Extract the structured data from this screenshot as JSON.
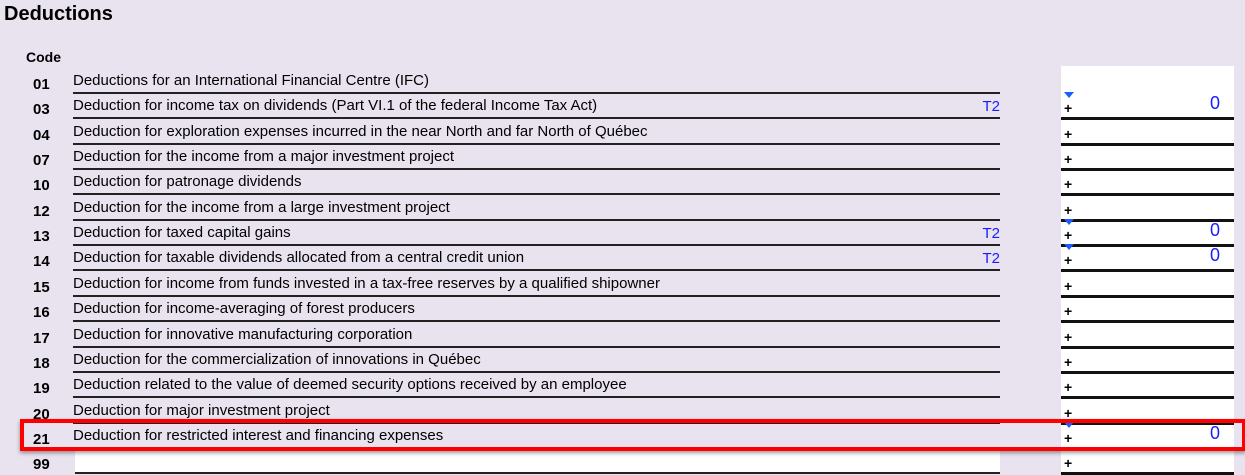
{
  "title": "Deductions",
  "code_header": "Code",
  "rows": [
    {
      "code": "01",
      "desc": "Deductions for an International Financial Centre (IFC)",
      "ref": "",
      "value": "",
      "plus": "",
      "has_amount_line": false
    },
    {
      "code": "03",
      "desc": "Deduction for income tax on dividends (Part VI.1 of the federal Income Tax Act)",
      "ref": "T2",
      "value": "0",
      "plus": "+"
    },
    {
      "code": "04",
      "desc": "Deduction for exploration expenses incurred in the near North and far North of Québec",
      "ref": "",
      "value": "",
      "plus": "+"
    },
    {
      "code": "07",
      "desc": "Deduction for the income from a major investment project",
      "ref": "",
      "value": "",
      "plus": "+"
    },
    {
      "code": "10",
      "desc": "Deduction for patronage dividends",
      "ref": "",
      "value": "",
      "plus": "+"
    },
    {
      "code": "12",
      "desc": "Deduction for the income from a large investment project",
      "ref": "",
      "value": "",
      "plus": "+"
    },
    {
      "code": "13",
      "desc": "Deduction for taxed capital gains",
      "ref": "T2",
      "value": "0",
      "plus": "+"
    },
    {
      "code": "14",
      "desc": "Deduction for taxable dividends allocated from a central credit union",
      "ref": "T2",
      "value": "0",
      "plus": "+"
    },
    {
      "code": "15",
      "desc": "Deduction for income from funds invested in a tax-free reserves by a qualified shipowner",
      "ref": "",
      "value": "",
      "plus": "+"
    },
    {
      "code": "16",
      "desc": "Deduction for income-averaging of forest producers",
      "ref": "",
      "value": "",
      "plus": "+"
    },
    {
      "code": "17",
      "desc": "Deduction for innovative manufacturing corporation",
      "ref": "",
      "value": "",
      "plus": "+"
    },
    {
      "code": "18",
      "desc": "Deduction for the commercialization of innovations in Québec",
      "ref": "",
      "value": "",
      "plus": "+"
    },
    {
      "code": "19",
      "desc": "Deduction related to the value of deemed security options received by an employee",
      "ref": "",
      "value": "",
      "plus": "+"
    },
    {
      "code": "20",
      "desc": "Deduction for major investment project",
      "ref": "",
      "value": "",
      "plus": "+"
    },
    {
      "code": "21",
      "desc": "Deduction for restricted interest and financing expenses",
      "ref": "",
      "value": "0",
      "plus": "+"
    },
    {
      "code": "99",
      "desc": "",
      "ref": "",
      "value": "",
      "plus": "+"
    }
  ],
  "highlight_color": "#ff0000",
  "link_color": "#1a1aff"
}
